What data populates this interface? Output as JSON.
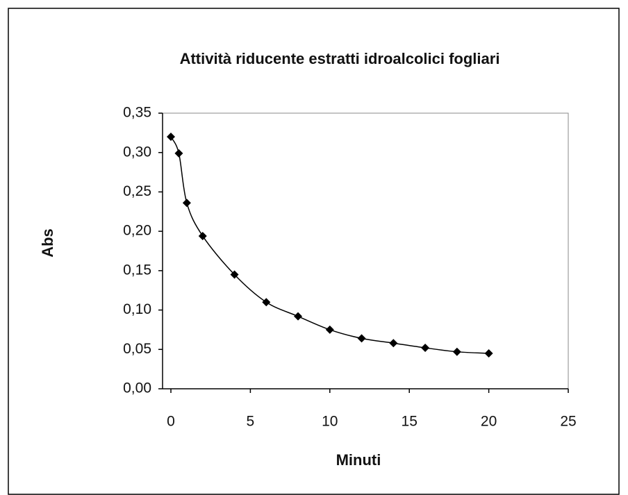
{
  "chart_data": {
    "type": "line",
    "title": "Attività riducente estratti idroalcolici fogliari",
    "x_label": "Minuti",
    "y_label": "Abs",
    "x": [
      0,
      0.5,
      1,
      2,
      4,
      6,
      8,
      10,
      12,
      14,
      16,
      18,
      20
    ],
    "series": [
      {
        "color": "#000000",
        "values": [
          0.32,
          0.299,
          0.236,
          0.194,
          0.145,
          0.11,
          0.092,
          0.075,
          0.064,
          0.058,
          0.052,
          0.047,
          0.045
        ]
      }
    ],
    "xlim": [
      0,
      25
    ],
    "xticks": [
      0,
      5,
      10,
      15,
      20,
      25
    ],
    "ylim": [
      0,
      0.35
    ],
    "yticks": [
      {
        "value": 0,
        "label": "0,00"
      },
      {
        "value": 0.05,
        "label": "0,05"
      },
      {
        "value": 0.1,
        "label": "0,10"
      },
      {
        "value": 0.15,
        "label": "0,15"
      },
      {
        "value": 0.2,
        "label": "0,20"
      },
      {
        "value": 0.25,
        "label": "0,25"
      },
      {
        "value": 0.3,
        "label": "0,30"
      },
      {
        "value": 0.35,
        "label": "0,35"
      }
    ],
    "smooth": true,
    "marker": "diamond"
  }
}
